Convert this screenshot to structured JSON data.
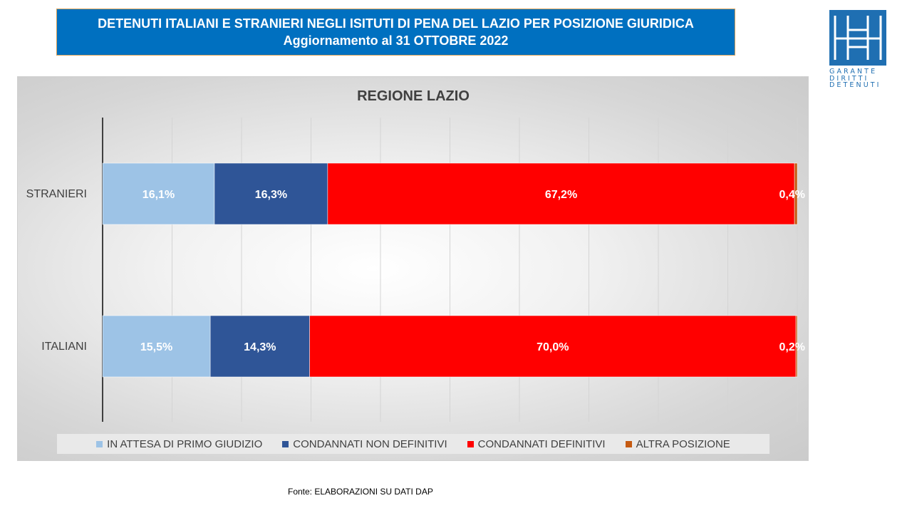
{
  "header": {
    "line1": "DETENUTI ITALIANI E STRANIERI NEGLI ISITUTI DI PENA DEL LAZIO PER POSIZIONE GIURIDICA",
    "line2": "Aggiornamento al 31 OTTOBRE 2022"
  },
  "logo": {
    "line1": "GARANTE",
    "line2": "DIRITTI",
    "line3": "DETENUTI"
  },
  "source": "Fonte:  ELABORAZIONI SU DATI DAP",
  "chart_data": {
    "type": "bar",
    "orientation": "horizontal",
    "stacked": true,
    "title": "REGIONE LAZIO",
    "categories": [
      "STRANIERI",
      "ITALIANI"
    ],
    "series": [
      {
        "name": "IN ATTESA DI PRIMO GIUDIZIO",
        "values": [
          16.1,
          15.5
        ],
        "labels": [
          "16,1%",
          "15,5%"
        ],
        "color": "#9dc3e6"
      },
      {
        "name": "CONDANNATI NON DEFINITIVI",
        "values": [
          16.3,
          14.3
        ],
        "labels": [
          "16,3%",
          "14,3%"
        ],
        "color": "#2f5597"
      },
      {
        "name": "CONDANNATI DEFINITIVI",
        "values": [
          67.2,
          70.0
        ],
        "labels": [
          "67,2%",
          "70,0%"
        ],
        "color": "#ff0000"
      },
      {
        "name": "ALTRA POSIZIONE",
        "values": [
          0.4,
          0.2
        ],
        "labels": [
          "0,4%",
          "0,2%"
        ],
        "color": "#c55a11"
      }
    ],
    "xlim": [
      0,
      100
    ],
    "grid": true,
    "legend_position": "bottom"
  }
}
